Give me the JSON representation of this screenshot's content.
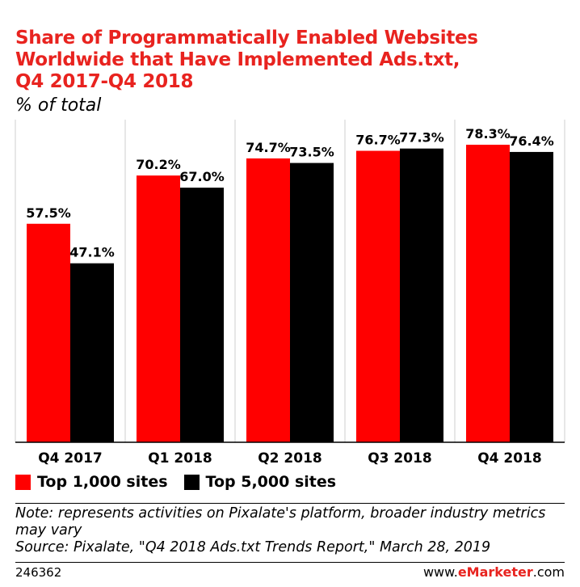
{
  "title_lines": [
    "Share of Programmatically Enabled Websites",
    "Worldwide that Have Implemented Ads.txt,",
    "Q4 2017-Q4 2018"
  ],
  "subtitle": "% of total",
  "colors": {
    "series1": "#ff0000",
    "series2": "#000000",
    "title": "#e8231f"
  },
  "chart_data": {
    "type": "bar",
    "categories": [
      "Q4 2017",
      "Q1 2018",
      "Q2 2018",
      "Q3 2018",
      "Q4 2018"
    ],
    "series": [
      {
        "name": "Top 1,000 sites",
        "values": [
          57.5,
          70.2,
          74.7,
          76.7,
          78.3
        ],
        "labels": [
          "57.5%",
          "70.2%",
          "74.7%",
          "76.7%",
          "78.3%"
        ]
      },
      {
        "name": "Top 5,000 sites",
        "values": [
          47.1,
          67.0,
          73.5,
          77.3,
          76.4
        ],
        "labels": [
          "47.1%",
          "67.0%",
          "73.5%",
          "77.3%",
          "76.4%"
        ]
      }
    ],
    "ylim": [
      0,
      100
    ],
    "grid": false,
    "legend_position": "bottom-left"
  },
  "legend": {
    "series1": "Top 1,000 sites",
    "series2": "Top 5,000 sites"
  },
  "note": "Note: represents activities on Pixalate's platform, broader industry metrics may vary",
  "source": "Source: Pixalate, \"Q4 2018 Ads.txt Trends Report,\" March 28, 2019",
  "footer": {
    "id": "246362",
    "brand_prefix": "www.",
    "brand_name": "eMarketer",
    "brand_suffix": ".com"
  }
}
